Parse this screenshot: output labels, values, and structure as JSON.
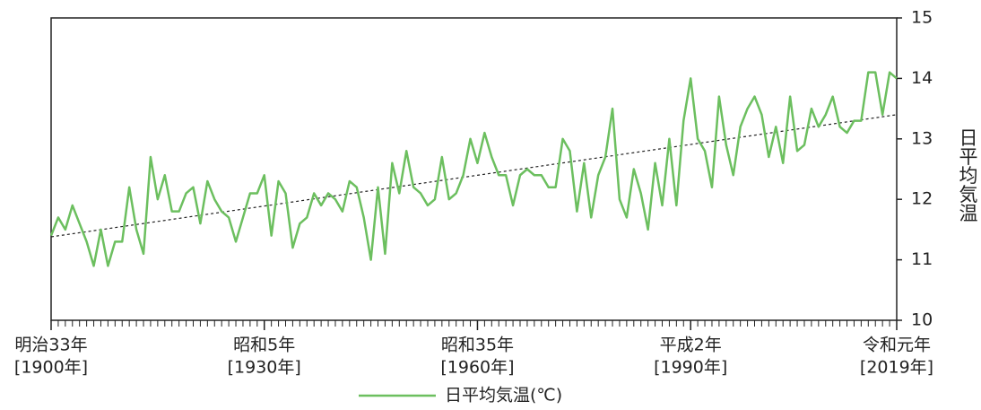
{
  "chart_data": {
    "type": "line",
    "x": [
      1900,
      1901,
      1902,
      1903,
      1904,
      1905,
      1906,
      1907,
      1908,
      1909,
      1910,
      1911,
      1912,
      1913,
      1914,
      1915,
      1916,
      1917,
      1918,
      1919,
      1920,
      1921,
      1922,
      1923,
      1924,
      1925,
      1926,
      1927,
      1928,
      1929,
      1930,
      1931,
      1932,
      1933,
      1934,
      1935,
      1936,
      1937,
      1938,
      1939,
      1940,
      1941,
      1942,
      1943,
      1944,
      1945,
      1946,
      1947,
      1948,
      1949,
      1950,
      1951,
      1952,
      1953,
      1954,
      1955,
      1956,
      1957,
      1958,
      1959,
      1960,
      1961,
      1962,
      1963,
      1964,
      1965,
      1966,
      1967,
      1968,
      1969,
      1970,
      1971,
      1972,
      1973,
      1974,
      1975,
      1976,
      1977,
      1978,
      1979,
      1980,
      1981,
      1982,
      1983,
      1984,
      1985,
      1986,
      1987,
      1988,
      1989,
      1990,
      1991,
      1992,
      1993,
      1994,
      1995,
      1996,
      1997,
      1998,
      1999,
      2000,
      2001,
      2002,
      2003,
      2004,
      2005,
      2006,
      2007,
      2008,
      2009,
      2010,
      2011,
      2012,
      2013,
      2014,
      2015,
      2016,
      2017,
      2018,
      2019
    ],
    "series": [
      {
        "name": "日平均気温(℃)",
        "color": "#6cbf5f",
        "values": [
          11.4,
          11.7,
          11.5,
          11.9,
          11.6,
          11.3,
          10.9,
          11.5,
          10.9,
          11.3,
          11.3,
          12.2,
          11.5,
          11.1,
          12.7,
          12.0,
          12.4,
          11.8,
          11.8,
          12.1,
          12.2,
          11.6,
          12.3,
          12.0,
          11.8,
          11.7,
          11.3,
          11.7,
          12.1,
          12.1,
          12.4,
          11.4,
          12.3,
          12.1,
          11.2,
          11.6,
          11.7,
          12.1,
          11.9,
          12.1,
          12.0,
          11.8,
          12.3,
          12.2,
          11.7,
          11.0,
          12.2,
          11.1,
          12.6,
          12.1,
          12.8,
          12.2,
          12.1,
          11.9,
          12.0,
          12.7,
          12.0,
          12.1,
          12.4,
          13.0,
          12.6,
          13.1,
          12.7,
          12.4,
          12.4,
          11.9,
          12.4,
          12.5,
          12.4,
          12.4,
          12.2,
          12.2,
          13.0,
          12.8,
          11.8,
          12.6,
          11.7,
          12.4,
          12.7,
          13.5,
          12.0,
          11.7,
          12.5,
          12.1,
          11.5,
          12.6,
          11.9,
          13.0,
          11.9,
          13.3,
          14.0,
          13.0,
          12.8,
          12.2,
          13.7,
          12.9,
          12.4,
          13.2,
          13.5,
          13.7,
          13.4,
          12.7,
          13.2,
          12.6,
          13.7,
          12.8,
          12.9,
          13.5,
          13.2,
          13.4,
          13.7,
          13.2,
          13.1,
          13.3,
          13.3,
          14.1,
          14.1,
          13.4,
          14.1,
          14.0
        ]
      }
    ],
    "trend_line": {
      "x": [
        1900,
        2019
      ],
      "values": [
        11.38,
        13.4
      ]
    },
    "xlim": [
      1900,
      2019
    ],
    "xticks": [
      {
        "value": 1900,
        "label": [
          "明治33年",
          "[1900年]"
        ]
      },
      {
        "value": 1930,
        "label": [
          "昭和5年",
          "[1930年]"
        ]
      },
      {
        "value": 1960,
        "label": [
          "昭和35年",
          "[1960年]"
        ]
      },
      {
        "value": 1990,
        "label": [
          "平成2年",
          "[1990年]"
        ]
      },
      {
        "value": 2019,
        "label": [
          "令和元年",
          "[2019年]"
        ]
      }
    ],
    "ylim": [
      10,
      15
    ],
    "yticks": [
      10,
      11,
      12,
      13,
      14,
      15
    ],
    "y_label": "日平均気温",
    "legend": "bottom"
  }
}
